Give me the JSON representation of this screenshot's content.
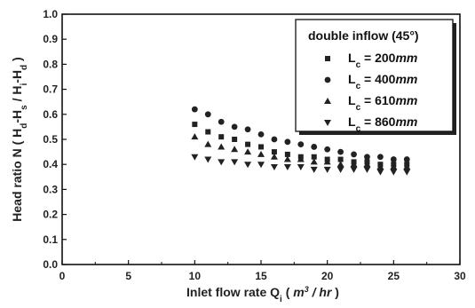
{
  "chart_data": {
    "type": "scatter",
    "xlabel": {
      "prefix": "Inlet flow rate Q",
      "sub": "i",
      "open": " ( ",
      "unit_base": "m",
      "unit_sup": "3",
      "unit_rest": " / hr",
      "close": " )"
    },
    "ylabel": {
      "t1": "Head ratio N ( H",
      "s1": "d",
      "t2": "-H",
      "s2": "s",
      "t3": " / H",
      "s3": "i",
      "t4": "-H",
      "s4": "d",
      "t5": " )"
    },
    "xlim": [
      0,
      30
    ],
    "ylim": [
      0.0,
      1.0
    ],
    "xticks": [
      "0",
      "5",
      "10",
      "15",
      "20",
      "25",
      "30"
    ],
    "yticks": [
      "0.0",
      "0.1",
      "0.2",
      "0.3",
      "0.4",
      "0.5",
      "0.6",
      "0.7",
      "0.8",
      "0.9",
      "1.0"
    ],
    "grid": false,
    "legend": {
      "title": "double inflow (45°)",
      "position": "top-right"
    },
    "series": [
      {
        "name": "Lc = 200mm",
        "label": {
          "base": "L",
          "sub": "c",
          "eq": " = 200",
          "unit": "mm"
        },
        "marker": "square",
        "x": [
          10,
          11,
          12,
          13,
          14,
          15,
          16,
          17,
          18,
          19,
          20,
          21,
          22,
          23,
          24,
          25,
          26
        ],
        "y": [
          0.56,
          0.53,
          0.51,
          0.5,
          0.48,
          0.47,
          0.45,
          0.44,
          0.43,
          0.43,
          0.42,
          0.42,
          0.41,
          0.41,
          0.4,
          0.4,
          0.4
        ]
      },
      {
        "name": "Lc = 400mm",
        "label": {
          "base": "L",
          "sub": "c",
          "eq": " = 400",
          "unit": "mm"
        },
        "marker": "circle",
        "x": [
          10,
          11,
          12,
          13,
          14,
          15,
          16,
          17,
          18,
          19,
          20,
          21,
          22,
          23,
          24,
          25,
          26
        ],
        "y": [
          0.62,
          0.6,
          0.57,
          0.55,
          0.54,
          0.52,
          0.5,
          0.49,
          0.48,
          0.47,
          0.46,
          0.45,
          0.44,
          0.43,
          0.43,
          0.42,
          0.42
        ]
      },
      {
        "name": "Lc = 610mm",
        "label": {
          "base": "L",
          "sub": "c",
          "eq": " = 610",
          "unit": "mm"
        },
        "marker": "triangle-up",
        "x": [
          10,
          11,
          12,
          13,
          14,
          15,
          16,
          17,
          18,
          19,
          20,
          21,
          22,
          23,
          24,
          25,
          26
        ],
        "y": [
          0.51,
          0.48,
          0.47,
          0.46,
          0.45,
          0.44,
          0.43,
          0.42,
          0.42,
          0.41,
          0.41,
          0.4,
          0.4,
          0.4,
          0.39,
          0.39,
          0.39
        ]
      },
      {
        "name": "Lc = 860mm",
        "label": {
          "base": "L",
          "sub": "c",
          "eq": " = 860",
          "unit": "mm"
        },
        "marker": "triangle-down",
        "x": [
          10,
          11,
          12,
          13,
          14,
          15,
          16,
          17,
          18,
          19,
          20,
          21,
          22,
          23,
          24,
          25,
          26
        ],
        "y": [
          0.43,
          0.42,
          0.41,
          0.41,
          0.4,
          0.4,
          0.39,
          0.39,
          0.39,
          0.38,
          0.38,
          0.38,
          0.38,
          0.38,
          0.37,
          0.37,
          0.37
        ]
      }
    ]
  }
}
